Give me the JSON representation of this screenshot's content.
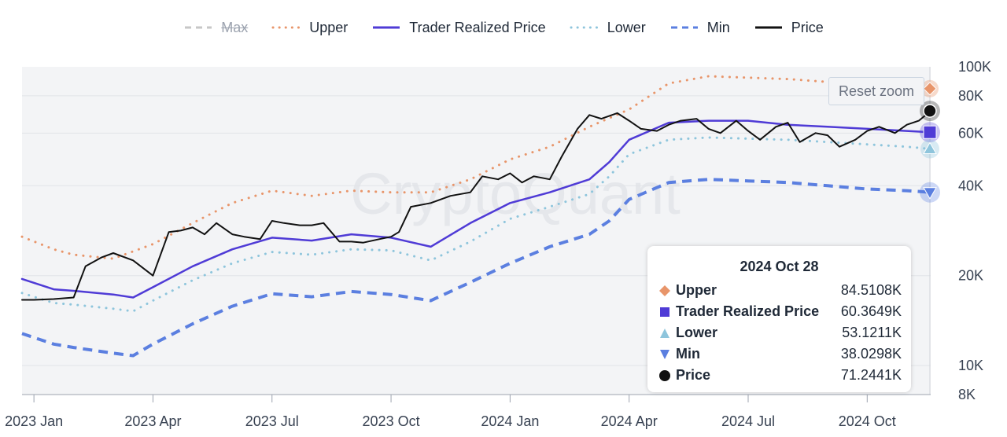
{
  "legend": [
    {
      "key": "max",
      "label": "Max",
      "color": "#c7c7c7",
      "dash": "dashed",
      "hidden": true
    },
    {
      "key": "upper",
      "label": "Upper",
      "color": "#e8956a",
      "dash": "dotted",
      "hidden": false
    },
    {
      "key": "trp",
      "label": "Trader Realized Price",
      "color": "#4f3bd6",
      "dash": "solid",
      "hidden": false
    },
    {
      "key": "lower",
      "label": "Lower",
      "color": "#8ec5dc",
      "dash": "dotted",
      "hidden": false
    },
    {
      "key": "min",
      "label": "Min",
      "color": "#5b7fe0",
      "dash": "dashed",
      "hidden": false
    },
    {
      "key": "price",
      "label": "Price",
      "color": "#111111",
      "dash": "solid",
      "hidden": false
    }
  ],
  "watermark": "CryptoQuant",
  "reset_zoom_label": "Reset zoom",
  "tooltip": {
    "date": "2024 Oct 28",
    "rows": [
      {
        "name": "Upper",
        "value": "84.5108K",
        "marker": "diamond",
        "color": "#e8956a"
      },
      {
        "name": "Trader Realized Price",
        "value": "60.3649K",
        "marker": "square",
        "color": "#4f3bd6"
      },
      {
        "name": "Lower",
        "value": "53.1211K",
        "marker": "triangle-up",
        "color": "#8ec5dc"
      },
      {
        "name": "Min",
        "value": "38.0298K",
        "marker": "triangle-down",
        "color": "#5b7fe0"
      },
      {
        "name": "Price",
        "value": "71.2441K",
        "marker": "circle",
        "color": "#111111"
      }
    ]
  },
  "chart_data": {
    "type": "line",
    "title": "",
    "xlabel": "",
    "ylabel": "",
    "y_scale": "log",
    "ylim": [
      8000,
      100000
    ],
    "xlim": [
      -0.3,
      22.6
    ],
    "y_ticks": [
      {
        "value": 100000,
        "label": "100K"
      },
      {
        "value": 80000,
        "label": "80K"
      },
      {
        "value": 60000,
        "label": "60K"
      },
      {
        "value": 40000,
        "label": "40K"
      },
      {
        "value": 20000,
        "label": "20K"
      },
      {
        "value": 10000,
        "label": "10K"
      },
      {
        "value": 8000,
        "label": "8K"
      }
    ],
    "x_ticks": [
      {
        "t": 0,
        "label": "2023 Jan"
      },
      {
        "t": 3,
        "label": "2023 Apr"
      },
      {
        "t": 6,
        "label": "2023 Jul"
      },
      {
        "t": 9,
        "label": "2023 Oct"
      },
      {
        "t": 12,
        "label": "2024 Jan"
      },
      {
        "t": 15,
        "label": "2024 Apr"
      },
      {
        "t": 18,
        "label": "2024 Jul"
      },
      {
        "t": 21,
        "label": "2024 Oct"
      }
    ],
    "series": [
      {
        "name": "Upper",
        "key": "upper",
        "x": [
          -0.3,
          0.5,
          1.0,
          2.0,
          3.0,
          4.0,
          5.0,
          6.0,
          7.0,
          8.0,
          9.0,
          10.0,
          11.0,
          12.0,
          13.0,
          14.0,
          15.0,
          16.0,
          17.0,
          18.0,
          19.0,
          20.0,
          21.0,
          22.0,
          22.6
        ],
        "y": [
          27000,
          24500,
          23500,
          22800,
          25500,
          30000,
          35000,
          38500,
          37000,
          38500,
          38000,
          38000,
          42000,
          49000,
          54000,
          63000,
          72000,
          88000,
          93000,
          92000,
          91000,
          89000,
          88000,
          86000,
          84500
        ]
      },
      {
        "name": "Trader Realized Price",
        "key": "trp",
        "x": [
          -0.3,
          0.5,
          1.0,
          2.0,
          2.5,
          3.0,
          4.0,
          5.0,
          6.0,
          7.0,
          8.0,
          9.0,
          10.0,
          11.0,
          12.0,
          13.0,
          14.0,
          14.5,
          15.0,
          16.0,
          17.0,
          18.0,
          19.0,
          20.0,
          21.0,
          22.0,
          22.6
        ],
        "y": [
          19500,
          18000,
          17800,
          17300,
          16900,
          18300,
          21500,
          24500,
          26800,
          26200,
          27500,
          26800,
          25000,
          30000,
          35000,
          38000,
          42000,
          48000,
          57000,
          65000,
          66000,
          66000,
          64000,
          63000,
          62000,
          61000,
          60400
        ]
      },
      {
        "name": "Lower",
        "key": "lower",
        "x": [
          -0.3,
          0.5,
          1.0,
          2.0,
          2.5,
          3.0,
          4.0,
          5.0,
          6.0,
          7.0,
          8.0,
          9.0,
          10.0,
          11.0,
          12.0,
          13.0,
          14.0,
          14.5,
          15.0,
          16.0,
          17.0,
          18.0,
          19.0,
          20.0,
          21.0,
          22.0,
          22.6
        ],
        "y": [
          17500,
          16200,
          16000,
          15500,
          15200,
          16500,
          19300,
          22000,
          24000,
          23500,
          24500,
          24300,
          22500,
          26000,
          31000,
          34000,
          37500,
          43000,
          51000,
          57000,
          58000,
          57500,
          57000,
          56000,
          55000,
          54000,
          53100
        ]
      },
      {
        "name": "Min",
        "key": "min",
        "x": [
          -0.3,
          0.5,
          1.0,
          2.0,
          2.5,
          3.0,
          4.0,
          5.0,
          6.0,
          7.0,
          8.0,
          9.0,
          10.0,
          11.0,
          12.0,
          13.0,
          14.0,
          14.5,
          15.0,
          16.0,
          17.0,
          18.0,
          19.0,
          20.0,
          21.0,
          22.0,
          22.6
        ],
        "y": [
          12800,
          11800,
          11500,
          11000,
          10800,
          11800,
          13800,
          15800,
          17400,
          17000,
          17700,
          17300,
          16500,
          19000,
          22000,
          25000,
          27500,
          30500,
          36000,
          41000,
          42000,
          41500,
          41000,
          40000,
          39000,
          38500,
          38000
        ]
      },
      {
        "name": "Price",
        "key": "price",
        "x": [
          -0.3,
          0.0,
          0.5,
          1.0,
          1.3,
          1.7,
          2.0,
          2.5,
          3.0,
          3.4,
          3.7,
          4.0,
          4.3,
          4.6,
          5.0,
          5.3,
          5.7,
          6.0,
          6.3,
          6.7,
          7.0,
          7.3,
          7.7,
          8.0,
          8.3,
          8.7,
          9.0,
          9.2,
          9.5,
          10.0,
          10.5,
          11.0,
          11.3,
          11.7,
          12.0,
          12.3,
          12.6,
          13.0,
          13.3,
          13.7,
          14.0,
          14.3,
          14.7,
          15.0,
          15.3,
          15.7,
          16.0,
          16.3,
          16.7,
          17.0,
          17.3,
          17.7,
          18.0,
          18.3,
          18.7,
          19.0,
          19.3,
          19.7,
          20.0,
          20.3,
          20.7,
          21.0,
          21.3,
          21.7,
          22.0,
          22.3,
          22.6
        ],
        "y": [
          16600,
          16600,
          16700,
          16900,
          21500,
          23000,
          23800,
          22500,
          20000,
          28000,
          28300,
          29000,
          27500,
          30000,
          27500,
          27000,
          26500,
          30500,
          30000,
          29500,
          29500,
          30000,
          26000,
          26000,
          25800,
          26500,
          27000,
          28000,
          34000,
          35000,
          37000,
          38000,
          43000,
          42000,
          44000,
          41000,
          43000,
          42000,
          50000,
          62000,
          69000,
          67000,
          70000,
          66000,
          62000,
          61000,
          64000,
          66000,
          67000,
          62000,
          60000,
          66000,
          61000,
          57000,
          63000,
          65000,
          56000,
          60000,
          59000,
          54000,
          57000,
          61000,
          63000,
          60000,
          64000,
          66000,
          71200
        ]
      }
    ]
  }
}
